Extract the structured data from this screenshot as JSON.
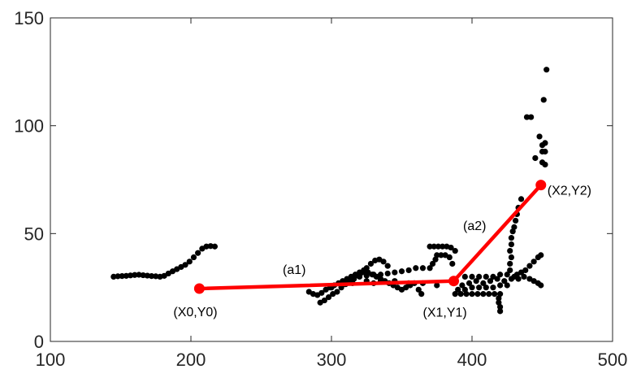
{
  "chart_data": {
    "type": "scatter",
    "title": "",
    "xlabel": "",
    "ylabel": "",
    "xlim": [
      100,
      500
    ],
    "ylim": [
      0,
      150
    ],
    "xticks": [
      100,
      200,
      300,
      400,
      500
    ],
    "yticks": [
      0,
      50,
      100,
      150
    ],
    "grid": false,
    "colors": {
      "points": "#000000",
      "fit": "#ff0000",
      "axes": "#262626"
    },
    "points": [
      [
        145,
        30
      ],
      [
        148,
        30.2
      ],
      [
        151,
        30.3
      ],
      [
        154,
        30.4
      ],
      [
        157,
        30.6
      ],
      [
        160,
        30.8
      ],
      [
        163,
        30.9
      ],
      [
        166,
        30.7
      ],
      [
        169,
        30.5
      ],
      [
        172,
        30.3
      ],
      [
        175,
        30.2
      ],
      [
        178,
        30
      ],
      [
        181,
        30.4
      ],
      [
        184,
        31.5
      ],
      [
        187,
        32.5
      ],
      [
        190,
        33.5
      ],
      [
        193,
        34.5
      ],
      [
        196,
        35.5
      ],
      [
        199,
        37
      ],
      [
        202,
        39
      ],
      [
        205,
        41
      ],
      [
        208,
        43
      ],
      [
        211,
        44
      ],
      [
        214,
        44.2
      ],
      [
        217,
        44
      ],
      [
        284,
        23
      ],
      [
        287,
        22
      ],
      [
        290,
        21.5
      ],
      [
        293,
        22.5
      ],
      [
        296,
        24
      ],
      [
        299,
        25
      ],
      [
        302,
        26
      ],
      [
        292,
        18
      ],
      [
        295,
        19
      ],
      [
        298,
        20.5
      ],
      [
        301,
        22
      ],
      [
        304,
        23
      ],
      [
        307,
        25
      ],
      [
        310,
        26.5
      ],
      [
        313,
        28
      ],
      [
        316,
        29
      ],
      [
        319,
        30.5
      ],
      [
        322,
        32
      ],
      [
        325,
        34
      ],
      [
        328,
        36
      ],
      [
        331,
        37.5
      ],
      [
        334,
        38
      ],
      [
        337,
        37
      ],
      [
        340,
        35
      ],
      [
        305,
        27
      ],
      [
        308,
        28
      ],
      [
        311,
        29
      ],
      [
        314,
        30
      ],
      [
        317,
        31
      ],
      [
        320,
        32
      ],
      [
        323,
        33
      ],
      [
        326,
        32
      ],
      [
        329,
        31
      ],
      [
        332,
        30
      ],
      [
        335,
        29
      ],
      [
        338,
        28
      ],
      [
        341,
        27
      ],
      [
        344,
        26
      ],
      [
        347,
        25
      ],
      [
        350,
        24
      ],
      [
        353,
        25
      ],
      [
        356,
        26
      ],
      [
        359,
        27
      ],
      [
        362,
        24
      ],
      [
        364,
        22
      ],
      [
        320,
        30
      ],
      [
        325,
        30.5
      ],
      [
        330,
        31
      ],
      [
        335,
        31
      ],
      [
        340,
        31.5
      ],
      [
        345,
        32
      ],
      [
        350,
        32.5
      ],
      [
        355,
        33
      ],
      [
        360,
        34
      ],
      [
        365,
        34
      ],
      [
        370,
        34
      ],
      [
        372,
        36
      ],
      [
        374,
        38
      ],
      [
        370,
        44
      ],
      [
        373,
        44
      ],
      [
        376,
        44
      ],
      [
        379,
        44
      ],
      [
        382,
        44
      ],
      [
        385,
        43.5
      ],
      [
        388,
        42
      ],
      [
        375,
        40
      ],
      [
        378,
        40
      ],
      [
        381,
        40
      ],
      [
        384,
        39
      ],
      [
        386,
        36
      ],
      [
        300,
        25
      ],
      [
        310,
        27
      ],
      [
        315,
        27
      ],
      [
        325,
        28
      ],
      [
        330,
        27
      ],
      [
        335,
        28
      ],
      [
        345,
        28
      ],
      [
        355,
        27
      ],
      [
        365,
        27
      ],
      [
        375,
        26
      ],
      [
        388,
        22
      ],
      [
        392,
        22
      ],
      [
        396,
        22
      ],
      [
        400,
        22
      ],
      [
        404,
        22
      ],
      [
        408,
        22
      ],
      [
        412,
        22
      ],
      [
        416,
        22
      ],
      [
        420,
        22
      ],
      [
        390,
        24
      ],
      [
        395,
        24
      ],
      [
        400,
        25
      ],
      [
        405,
        25
      ],
      [
        410,
        25
      ],
      [
        415,
        25
      ],
      [
        420,
        26
      ],
      [
        425,
        26
      ],
      [
        393,
        26
      ],
      [
        398,
        27
      ],
      [
        403,
        28
      ],
      [
        408,
        27
      ],
      [
        413,
        28
      ],
      [
        418,
        29
      ],
      [
        423,
        28
      ],
      [
        428,
        29
      ],
      [
        395,
        30
      ],
      [
        400,
        30
      ],
      [
        405,
        30
      ],
      [
        410,
        30
      ],
      [
        415,
        30
      ],
      [
        420,
        31
      ],
      [
        425,
        31
      ],
      [
        430,
        30
      ],
      [
        419,
        20
      ],
      [
        419,
        18
      ],
      [
        420,
        16
      ],
      [
        420,
        14
      ],
      [
        432,
        31
      ],
      [
        435,
        32
      ],
      [
        438,
        33
      ],
      [
        441,
        35
      ],
      [
        444,
        37
      ],
      [
        447,
        39
      ],
      [
        449,
        40
      ],
      [
        433,
        29
      ],
      [
        437,
        30
      ],
      [
        441,
        29
      ],
      [
        444,
        28
      ],
      [
        447,
        27
      ],
      [
        449,
        26
      ],
      [
        427,
        33
      ],
      [
        427,
        36
      ],
      [
        428,
        39
      ],
      [
        427,
        42
      ],
      [
        428,
        45
      ],
      [
        428,
        48
      ],
      [
        429,
        51
      ],
      [
        430,
        53
      ],
      [
        431,
        56
      ],
      [
        432,
        59
      ],
      [
        433,
        62
      ],
      [
        435,
        66
      ],
      [
        445,
        85
      ],
      [
        439,
        104
      ],
      [
        442,
        104
      ],
      [
        448,
        95
      ],
      [
        451,
        112
      ],
      [
        453,
        126
      ],
      [
        450,
        91
      ],
      [
        452,
        92
      ],
      [
        450,
        88
      ],
      [
        452,
        88
      ],
      [
        450,
        83
      ],
      [
        452,
        82
      ]
    ],
    "fit_line": {
      "vertices": [
        [
          206,
          24.5
        ],
        [
          387,
          28
        ],
        [
          449,
          72.5
        ]
      ],
      "vertex_labels": [
        "(X0,Y0)",
        "(X1,Y1)",
        "(X2,Y2)"
      ],
      "segment_labels": [
        "(a1)",
        "(a2)"
      ]
    }
  }
}
